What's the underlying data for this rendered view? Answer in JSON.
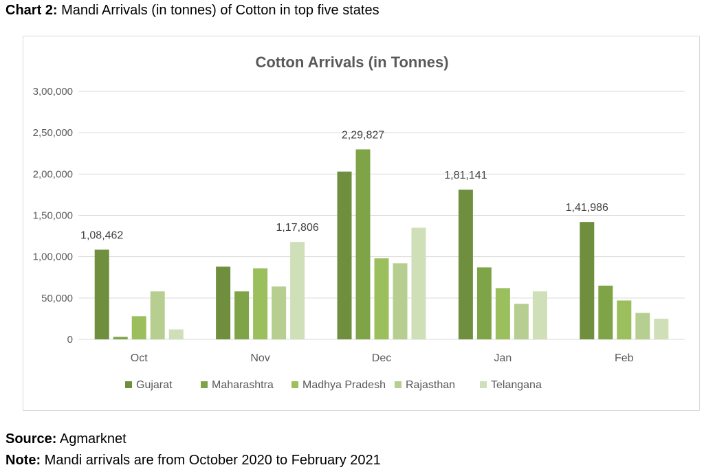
{
  "caption": {
    "label": "Chart 2:",
    "text": " Mandi Arrivals (in tonnes) of Cotton in top five states"
  },
  "footer": {
    "source_label": "Source:",
    "source_text": " Agmarknet",
    "note_label": "Note:",
    "note_text": " Mandi arrivals are from October 2020 to February 2021"
  },
  "chart_data": {
    "type": "bar",
    "title": "Cotton Arrivals (in Tonnes)",
    "xlabel": "",
    "ylabel": "",
    "categories": [
      "Oct",
      "Nov",
      "Dec",
      "Jan",
      "Feb"
    ],
    "ylim": [
      0,
      300000
    ],
    "yticks": [
      0,
      50000,
      100000,
      150000,
      200000,
      250000,
      300000
    ],
    "ytick_labels": [
      "0",
      "50,000",
      "1,00,000",
      "1,50,000",
      "2,00,000",
      "2,50,000",
      "3,00,000"
    ],
    "grid": true,
    "legend_position": "bottom",
    "series": [
      {
        "name": "Gujarat",
        "color": "#6f8f3f",
        "values": [
          108462,
          88000,
          203000,
          181141,
          141986
        ]
      },
      {
        "name": "Maharashtra",
        "color": "#7fa347",
        "values": [
          3000,
          58000,
          229827,
          87000,
          65000
        ]
      },
      {
        "name": "Madhya Pradesh",
        "color": "#9bbf5c",
        "values": [
          28000,
          86000,
          98000,
          62000,
          47000
        ]
      },
      {
        "name": "Rajasthan",
        "color": "#b6cf90",
        "values": [
          58000,
          64000,
          92000,
          43000,
          32000
        ]
      },
      {
        "name": "Telangana",
        "color": "#cfdfb8",
        "values": [
          12000,
          117806,
          135000,
          58000,
          25000
        ]
      }
    ],
    "data_labels": [
      {
        "category": "Oct",
        "series": "Gujarat",
        "text": "1,08,462"
      },
      {
        "category": "Nov",
        "series": "Telangana",
        "text": "1,17,806"
      },
      {
        "category": "Dec",
        "series": "Maharashtra",
        "text": "2,29,827"
      },
      {
        "category": "Jan",
        "series": "Gujarat",
        "text": "1,81,141"
      },
      {
        "category": "Feb",
        "series": "Gujarat",
        "text": "1,41,986"
      }
    ]
  }
}
